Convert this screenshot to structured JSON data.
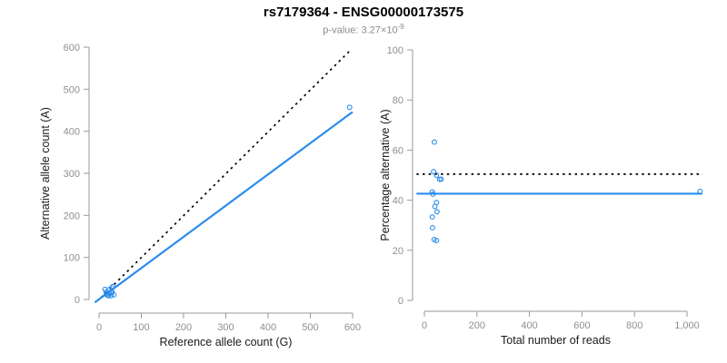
{
  "header": {
    "title": "rs7179364 - ENSG00000173575",
    "subtitle_prefix": "p-value: 3.27×10",
    "subtitle_exponent": "-9"
  },
  "colors": {
    "accent": "#2b8ceb",
    "dotted_line": "#000000",
    "axis": "#9a9a9a",
    "tick_label": "#8f8f8f",
    "axis_title": "#1a1a1a",
    "subtitle": "#8c8c8c"
  },
  "chart_data": [
    {
      "type": "scatter",
      "name": "allele-counts",
      "xlabel": "Reference allele count (G)",
      "ylabel": "Alternative allele count (A)",
      "xlim": [
        0,
        600
      ],
      "ylim": [
        0,
        600
      ],
      "xticks": [
        0,
        100,
        200,
        300,
        400,
        500,
        600
      ],
      "yticks": [
        0,
        100,
        200,
        300,
        400,
        500,
        600
      ],
      "grid": false,
      "points": [
        [
          14,
          24
        ],
        [
          17,
          18
        ],
        [
          23,
          23
        ],
        [
          33,
          31
        ],
        [
          30,
          28
        ],
        [
          17,
          13
        ],
        [
          19,
          14
        ],
        [
          28,
          18
        ],
        [
          25,
          15
        ],
        [
          31,
          17
        ],
        [
          20,
          10
        ],
        [
          22,
          9
        ],
        [
          28,
          9
        ],
        [
          35,
          11
        ],
        [
          593,
          457
        ]
      ],
      "lines": [
        {
          "name": "identity",
          "style": "dotted",
          "color": "#000000",
          "from": [
            5,
            5
          ],
          "to": [
            597,
            595
          ]
        },
        {
          "name": "fit",
          "style": "solid",
          "color": "#2b8ceb",
          "from": [
            -10,
            -7
          ],
          "to": [
            600,
            446
          ]
        }
      ]
    },
    {
      "type": "scatter",
      "name": "percentage-by-reads",
      "xlabel": "Total number of reads",
      "ylabel": "Percentage alternative (A)",
      "xlim": [
        0,
        1070
      ],
      "ylim": [
        0,
        100
      ],
      "xticks": [
        0,
        200,
        400,
        600,
        800,
        1000
      ],
      "xtick_labels": [
        "0",
        "200",
        "400",
        "600",
        "800",
        "1,000"
      ],
      "yticks": [
        0,
        20,
        40,
        60,
        80,
        100
      ],
      "grid": false,
      "points": [
        [
          38,
          63.2
        ],
        [
          35,
          51.4
        ],
        [
          46,
          50.0
        ],
        [
          64,
          48.4
        ],
        [
          58,
          48.3
        ],
        [
          30,
          43.3
        ],
        [
          33,
          42.4
        ],
        [
          46,
          39.1
        ],
        [
          40,
          37.5
        ],
        [
          48,
          35.4
        ],
        [
          30,
          33.3
        ],
        [
          31,
          29.0
        ],
        [
          37,
          24.3
        ],
        [
          46,
          23.9
        ],
        [
          1050,
          43.5
        ]
      ],
      "lines": [
        {
          "name": "fifty-percent",
          "style": "dotted",
          "color": "#000000",
          "from": [
            -30,
            50.4
          ],
          "to": [
            1060,
            50.4
          ]
        },
        {
          "name": "mean-percentage",
          "style": "solid",
          "color": "#2b8ceb",
          "from": [
            -30,
            42.6
          ],
          "to": [
            1058,
            42.6
          ]
        }
      ]
    }
  ]
}
